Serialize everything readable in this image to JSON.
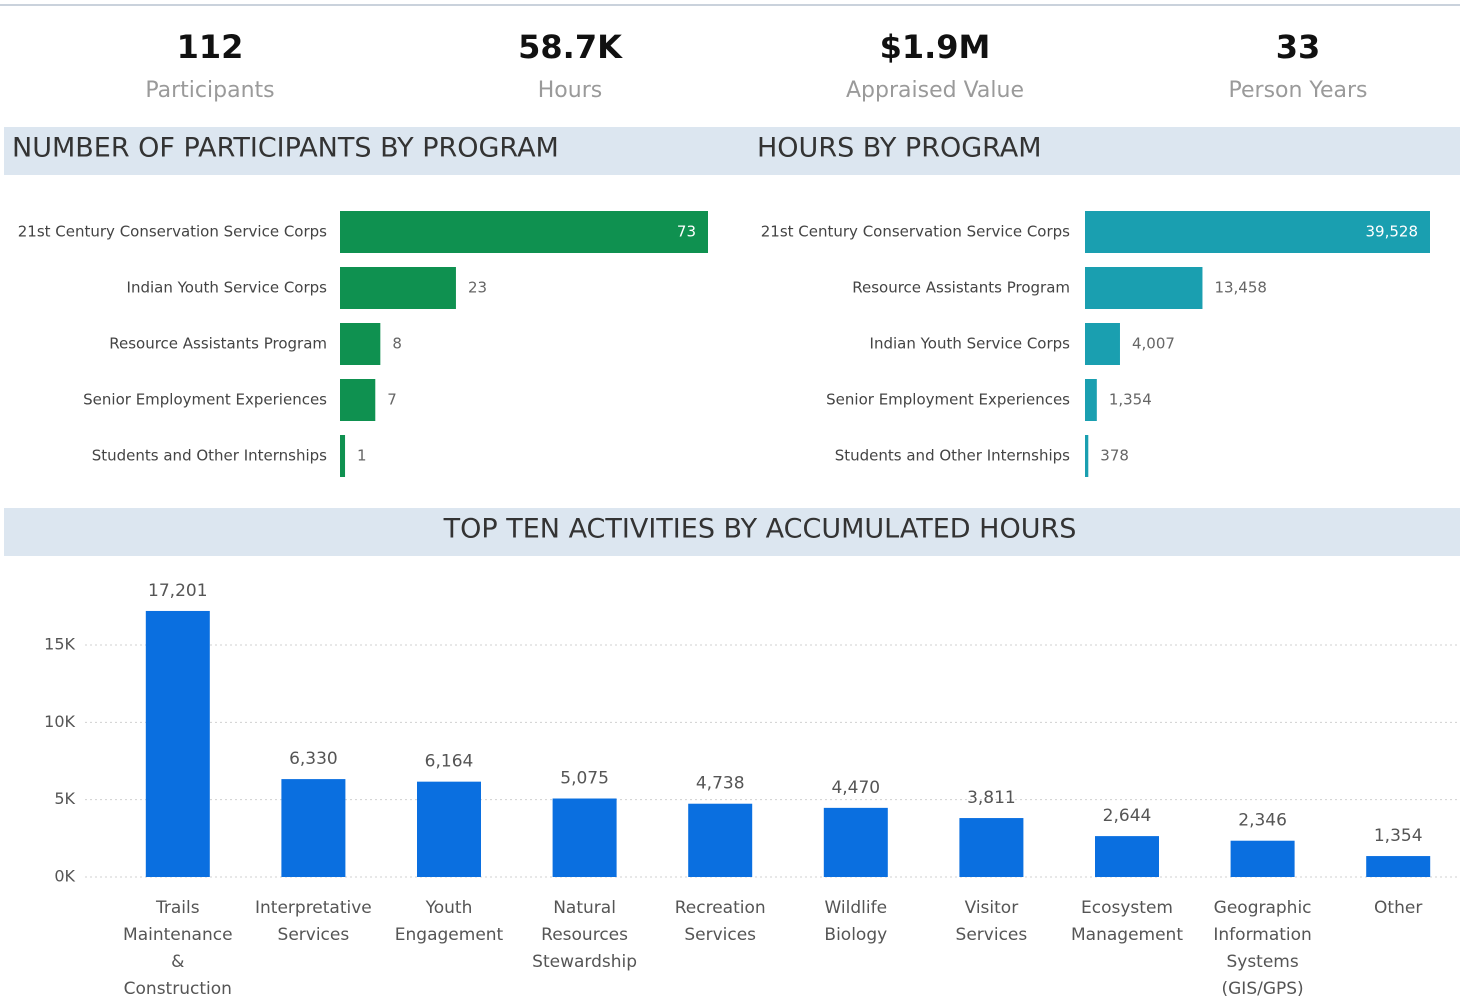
{
  "kpis": [
    {
      "value": "112",
      "label": "Participants"
    },
    {
      "value": "58.7K",
      "label": "Hours"
    },
    {
      "value": "$1.9M",
      "label": "Appraised Value"
    },
    {
      "value": "33",
      "label": "Person Years"
    }
  ],
  "chart_data": [
    {
      "type": "hbar",
      "title": "NUMBER OF PARTICIPANTS BY PROGRAM",
      "categories": [
        "21st Century Conservation Service Corps",
        "Indian Youth Service Corps",
        "Resource Assistants Program",
        "Senior Employment Experiences",
        "Students and Other Internships"
      ],
      "values": [
        73,
        23,
        8,
        7,
        1
      ],
      "color": "#0f9150"
    },
    {
      "type": "hbar",
      "title": "HOURS BY PROGRAM",
      "categories": [
        "21st Century Conservation Service Corps",
        "Resource Assistants Program",
        "Indian Youth Service Corps",
        "Senior Employment Experiences",
        "Students and Other Internships"
      ],
      "values": [
        39528,
        13458,
        4007,
        1354,
        378
      ],
      "value_labels": [
        "39,528",
        "13,458",
        "4,007",
        "1,354",
        "378"
      ],
      "color": "#1a9fb0"
    },
    {
      "type": "bar",
      "title": "TOP TEN ACTIVITIES BY ACCUMULATED HOURS",
      "categories": [
        "Trails Maintenance & Construction",
        "Interpretative Services",
        "Youth Engagement",
        "Natural Resources Stewardship",
        "Recreation Services",
        "Wildlife Biology",
        "Visitor Services",
        "Ecosystem Management",
        "Geographic Information Systems (GIS/GPS)",
        "Other"
      ],
      "values": [
        17201,
        6330,
        6164,
        5075,
        4738,
        4470,
        3811,
        2644,
        2346,
        1354
      ],
      "value_labels": [
        "17,201",
        "6,330",
        "6,164",
        "5,075",
        "4,738",
        "4,470",
        "3,811",
        "2,644",
        "2,346",
        "1,354"
      ],
      "color": "#0a6fe0",
      "ylim": [
        0,
        18000
      ],
      "yticks": [
        {
          "value": 0,
          "label": "0K"
        },
        {
          "value": 5000,
          "label": "5K"
        },
        {
          "value": 10000,
          "label": "10K"
        },
        {
          "value": 15000,
          "label": "15K"
        }
      ],
      "grid": true
    }
  ]
}
